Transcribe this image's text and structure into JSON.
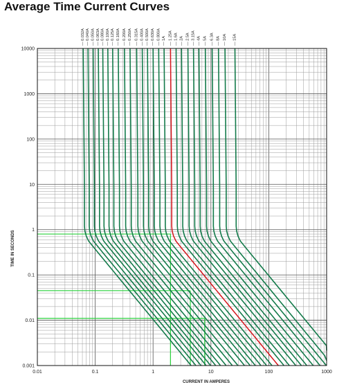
{
  "page": {
    "title": "Average Time Current Curves"
  },
  "chart_data": {
    "type": "line",
    "title": "Average Time Current Curves",
    "xlabel": "CURRENT IN AMPERES",
    "ylabel": "TIME IN SECONDS",
    "xscale": "log",
    "yscale": "log",
    "xlim": [
      0.01,
      1000
    ],
    "ylim": [
      0.001,
      10000
    ],
    "x_ticks": [
      "0.01",
      "0.1",
      "1",
      "10",
      "100",
      "1000"
    ],
    "y_ticks": [
      "0.001",
      "0.01",
      "0.1",
      "1",
      "10",
      "100",
      "1000",
      "10000"
    ],
    "grid": true,
    "line_color": "#137a4a",
    "highlight_color": "#d4141a",
    "guide_color": "#27d03a",
    "series": [
      {
        "name": "0.032A",
        "vertical_current": 0.062
      },
      {
        "name": "0.040A",
        "vertical_current": 0.075
      },
      {
        "name": "0.050A",
        "vertical_current": 0.092
      },
      {
        "name": "0.063A",
        "vertical_current": 0.113
      },
      {
        "name": "0.080A",
        "vertical_current": 0.135
      },
      {
        "name": "0.100A",
        "vertical_current": 0.165
      },
      {
        "name": "0.125A",
        "vertical_current": 0.2
      },
      {
        "name": "0.160A",
        "vertical_current": 0.25
      },
      {
        "name": "0.200A",
        "vertical_current": 0.32
      },
      {
        "name": "0.250A",
        "vertical_current": 0.4
      },
      {
        "name": "0.315A",
        "vertical_current": 0.52
      },
      {
        "name": "0.400A",
        "vertical_current": 0.65
      },
      {
        "name": "0.500A",
        "vertical_current": 0.8
      },
      {
        "name": "0.630A",
        "vertical_current": 1.0
      },
      {
        "name": "0.800A",
        "vertical_current": 1.25
      },
      {
        "name": "1A",
        "vertical_current": 1.55
      },
      {
        "name": "1.25A",
        "vertical_current": 2.0,
        "highlight": true
      },
      {
        "name": "1.6A",
        "vertical_current": 2.5
      },
      {
        "name": "2A",
        "vertical_current": 3.1
      },
      {
        "name": "2.5A",
        "vertical_current": 4.0
      },
      {
        "name": "3.15A",
        "vertical_current": 5.0
      },
      {
        "name": "4A",
        "vertical_current": 6.2
      },
      {
        "name": "5A",
        "vertical_current": 8.0
      },
      {
        "name": "6.3A",
        "vertical_current": 10.5
      },
      {
        "name": "8A",
        "vertical_current": 13.5
      },
      {
        "name": "10A",
        "vertical_current": 17.5
      },
      {
        "name": "15A",
        "vertical_current": 26.0
      }
    ],
    "guide_lines": [
      {
        "time": 0.8,
        "current": 2.0
      },
      {
        "time": 0.045,
        "current": 4.4
      },
      {
        "time": 0.011,
        "current": 7.8
      }
    ]
  }
}
